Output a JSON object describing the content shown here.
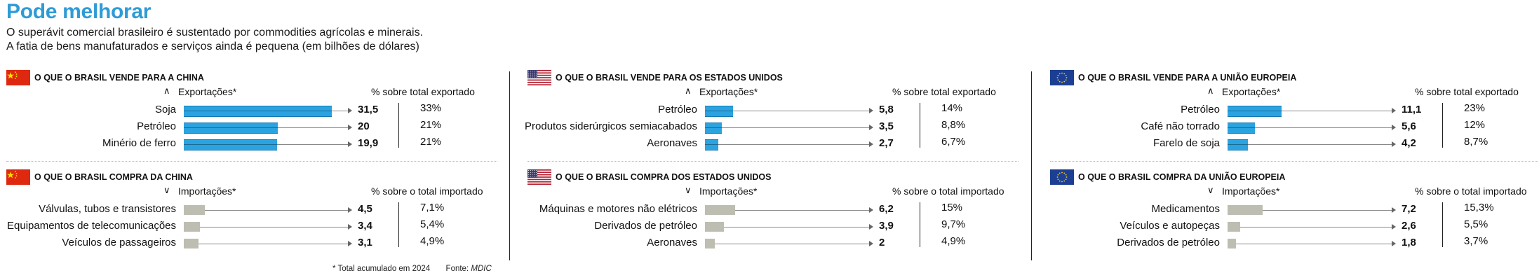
{
  "title": "Pode melhorar",
  "subtitle_line1": "O superávit comercial brasileiro é sustentado por commodities agrícolas e minerais.",
  "subtitle_line2": "A fatia de bens manufaturados e serviços ainda é pequena (em bilhões de dólares)",
  "footnote": "* Total acumulado em 2024",
  "source_label": "Fonte:",
  "source": "MDIC",
  "colors": {
    "title": "#2f9bd6",
    "export_bar": "#2aa3e0",
    "import_bar": "#bdbdb2"
  },
  "chart_data": [
    {
      "type": "bar",
      "flag_icon": "china-flag-icon",
      "title": "O que o Brasil vende para a China",
      "direction_label": "Exportações*",
      "direction_icon": "chevron-up-icon",
      "pct_header": "% sobre total exportado",
      "categories": [
        "Soja",
        "Petróleo",
        "Minério de ferro"
      ],
      "value_labels": [
        "31,5",
        "20",
        "19,9"
      ],
      "values": [
        31.5,
        20,
        19.9
      ],
      "pct_labels": [
        "33%",
        "21%",
        "21%"
      ],
      "kind": "export"
    },
    {
      "type": "bar",
      "flag_icon": "china-flag-icon",
      "title": "O que o Brasil compra da China",
      "direction_label": "Importações*",
      "direction_icon": "chevron-down-icon",
      "pct_header": "% sobre o total importado",
      "categories": [
        "Válvulas, tubos e transistores",
        "Equipamentos de telecomunicações",
        "Veículos de passageiros"
      ],
      "value_labels": [
        "4,5",
        "3,4",
        "3,1"
      ],
      "values": [
        4.5,
        3.4,
        3.1
      ],
      "pct_labels": [
        "7,1%",
        "5,4%",
        "4,9%"
      ],
      "kind": "import"
    },
    {
      "type": "bar",
      "flag_icon": "usa-flag-icon",
      "title": "O que o Brasil vende para os Estados Unidos",
      "direction_label": "Exportações*",
      "direction_icon": "chevron-up-icon",
      "pct_header": "% sobre total exportado",
      "categories": [
        "Petróleo",
        "Produtos siderúrgicos semiacabados",
        "Aeronaves"
      ],
      "value_labels": [
        "5,8",
        "3,5",
        "2,7"
      ],
      "values": [
        5.8,
        3.5,
        2.7
      ],
      "pct_labels": [
        "14%",
        "8,8%",
        "6,7%"
      ],
      "kind": "export"
    },
    {
      "type": "bar",
      "flag_icon": "usa-flag-icon",
      "title": "O que o Brasil compra dos Estados Unidos",
      "direction_label": "Importações*",
      "direction_icon": "chevron-down-icon",
      "pct_header": "% sobre o total importado",
      "categories": [
        "Máquinas e motores não elétricos",
        "Derivados de petróleo",
        "Aeronaves"
      ],
      "value_labels": [
        "6,2",
        "3,9",
        "2"
      ],
      "values": [
        6.2,
        3.9,
        2
      ],
      "pct_labels": [
        "15%",
        "9,7%",
        "4,9%"
      ],
      "kind": "import"
    },
    {
      "type": "bar",
      "flag_icon": "eu-flag-icon",
      "title": "O que o Brasil vende para a União Europeia",
      "direction_label": "Exportações*",
      "direction_icon": "chevron-up-icon",
      "pct_header": "% sobre total exportado",
      "categories": [
        "Petróleo",
        "Café não torrado",
        "Farelo de soja"
      ],
      "value_labels": [
        "11,1",
        "5,6",
        "4,2"
      ],
      "values": [
        11.1,
        5.6,
        4.2
      ],
      "pct_labels": [
        "23%",
        "12%",
        "8,7%"
      ],
      "kind": "export"
    },
    {
      "type": "bar",
      "flag_icon": "eu-flag-icon",
      "title": "O que o Brasil compra da União Europeia",
      "direction_label": "Importações*",
      "direction_icon": "chevron-down-icon",
      "pct_header": "% sobre o total importado",
      "categories": [
        "Medicamentos",
        "Veículos e autopeças",
        "Derivados de petróleo"
      ],
      "value_labels": [
        "7,2",
        "2,6",
        "1,8"
      ],
      "values": [
        7.2,
        2.6,
        1.8
      ],
      "pct_labels": [
        "15,3%",
        "5,5%",
        "3,7%"
      ],
      "kind": "import"
    }
  ]
}
